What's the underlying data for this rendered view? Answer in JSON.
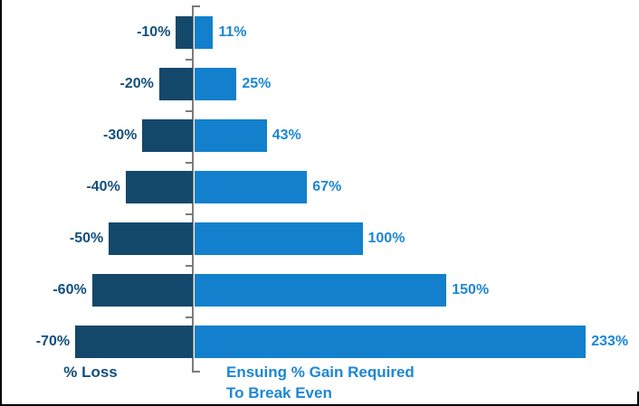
{
  "page": {
    "background": "#FFFFFF",
    "frame_border_color": "#000000"
  },
  "chart_data": {
    "type": "bar",
    "subtype": "diverging-horizontal-tornado",
    "title": "",
    "categories": [
      "-10%",
      "-20%",
      "-30%",
      "-40%",
      "-50%",
      "-60%",
      "-70%"
    ],
    "series": [
      {
        "name": "% Loss",
        "values": [
          -10,
          -20,
          -30,
          -40,
          -50,
          -60,
          -70
        ],
        "labels": [
          "-10%",
          "-20%",
          "-30%",
          "-40%",
          "-50%",
          "-60%",
          "-70%"
        ],
        "bar_color": "#14486B",
        "label_color": "#134F7D"
      },
      {
        "name": "Ensuing % Gain Required To Break Even",
        "values": [
          11,
          25,
          43,
          67,
          100,
          150,
          233
        ],
        "labels": [
          "11%",
          "25%",
          "43%",
          "67%",
          "100%",
          "150%",
          "233%"
        ],
        "bar_color": "#1280CC",
        "label_color": "#1C87D6"
      }
    ],
    "axis": {
      "left_title": "% Loss",
      "right_title_lines": [
        "Ensuing % Gain Required",
        "To Break Even"
      ],
      "baseline_color": "#7C7C7C",
      "tick_marks": true
    },
    "x_range": [
      -70,
      233
    ],
    "grid": false,
    "legend": "none"
  }
}
